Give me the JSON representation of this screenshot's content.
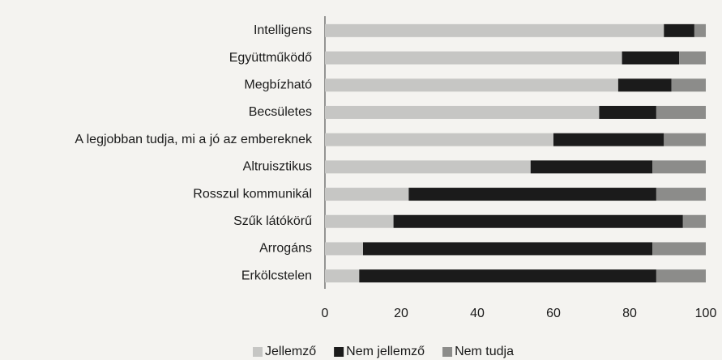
{
  "chart_data": {
    "type": "stacked_barh",
    "categories": [
      "Intelligens",
      "Együttműködő",
      "Megbízható",
      "Becsületes",
      "A legjobban tudja, mi a jó az embereknek",
      "Altruisztikus",
      "Rosszul kommunikál",
      "Szűk látókörű",
      "Arrogáns",
      "Erkölcstelen"
    ],
    "series": [
      {
        "name": "Jellemző",
        "color": "#c6c6c4",
        "values": [
          89,
          78,
          77,
          72,
          60,
          54,
          22,
          18,
          10,
          9
        ]
      },
      {
        "name": "Nem jellemző",
        "color": "#1b1b1b",
        "values": [
          8,
          15,
          14,
          15,
          29,
          32,
          65,
          76,
          76,
          78
        ]
      },
      {
        "name": "Nem tudja",
        "color": "#8c8c8a",
        "values": [
          3,
          7,
          9,
          13,
          11,
          14,
          13,
          6,
          14,
          13
        ]
      }
    ],
    "xlim": [
      0,
      100
    ],
    "xticks": [
      0,
      20,
      40,
      60,
      80,
      100
    ],
    "grid": false,
    "legend": "bottom"
  }
}
